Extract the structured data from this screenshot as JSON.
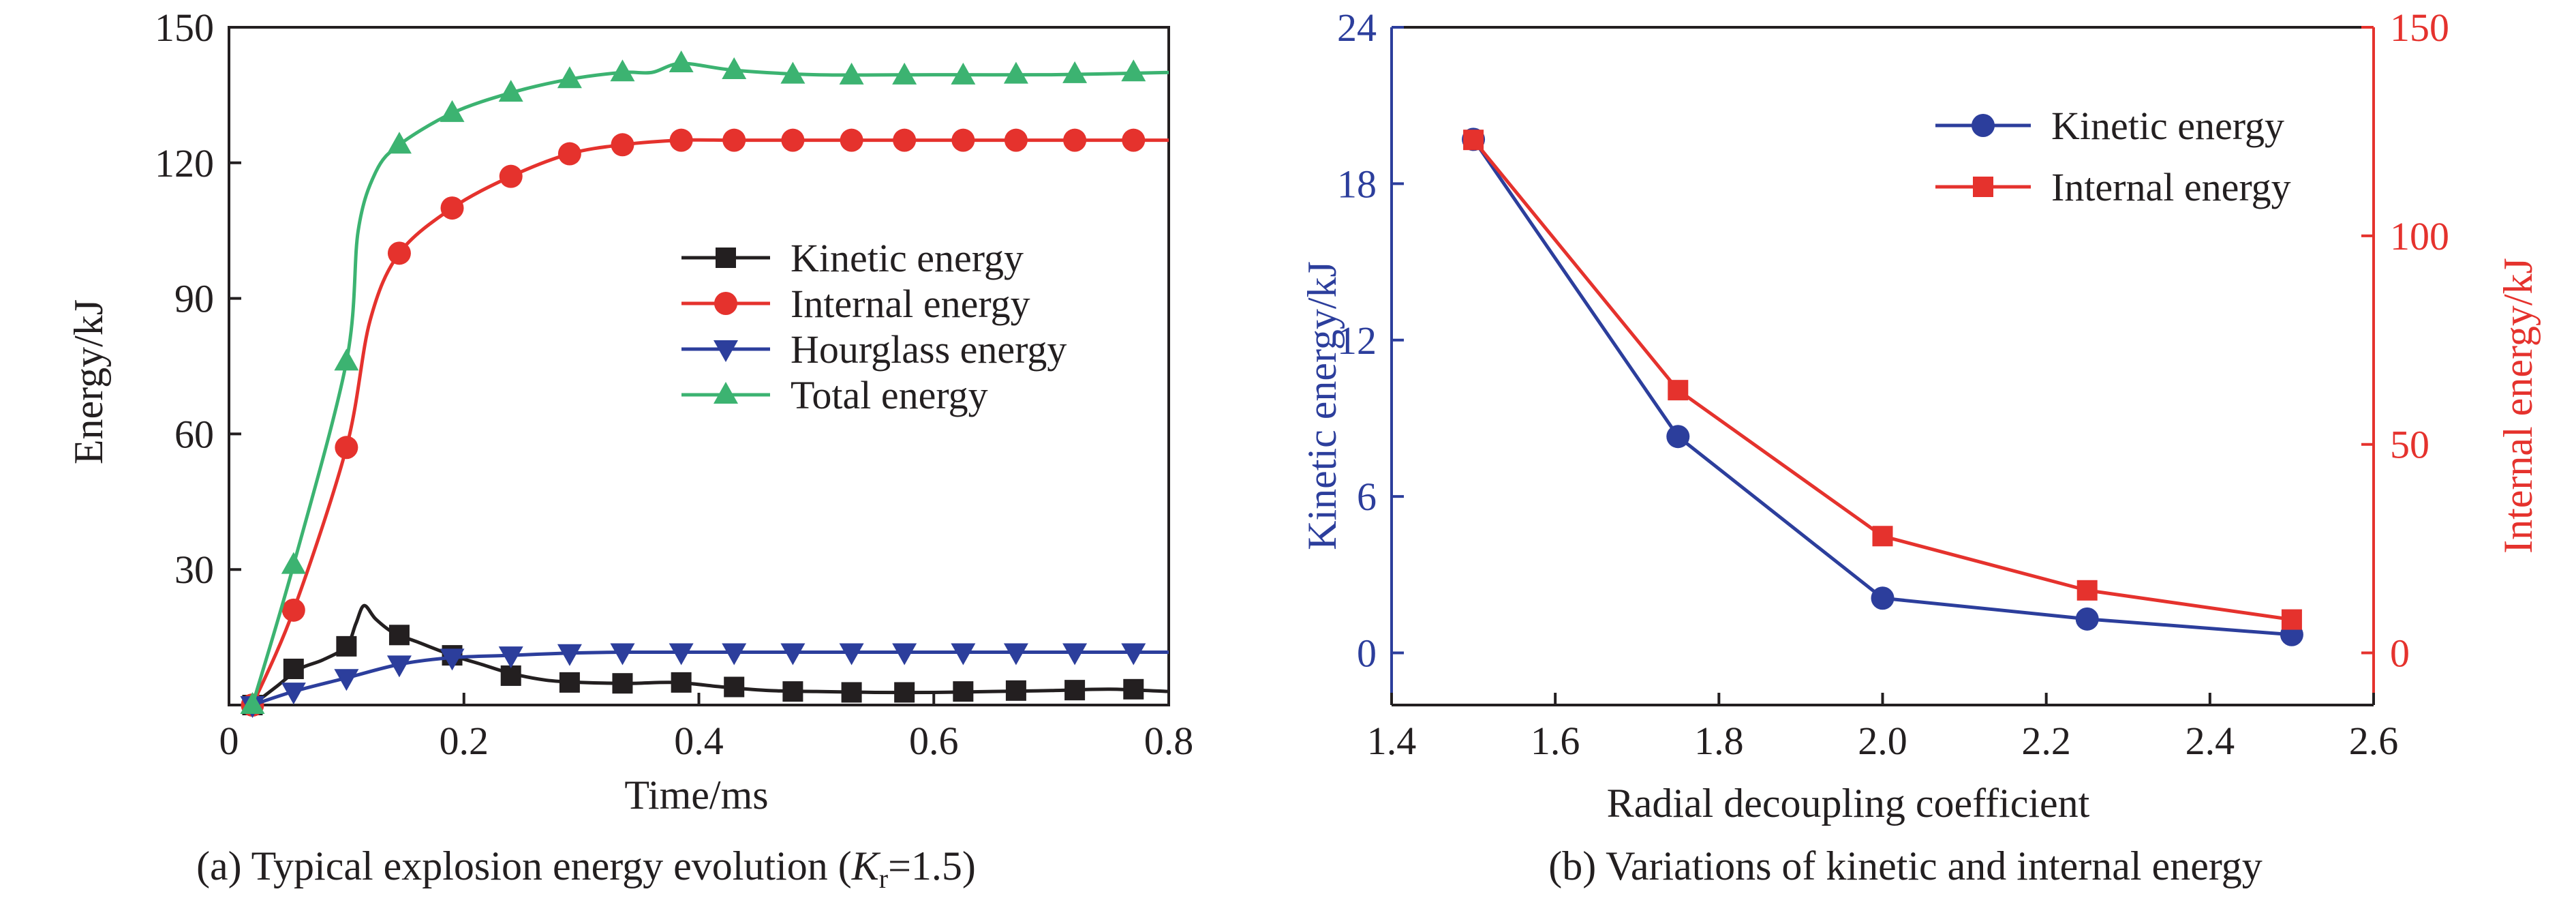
{
  "colors": {
    "black": "#231f20",
    "red": "#e5322d",
    "blue": "#2c3e9c",
    "green": "#3cb371",
    "kinetic_axis": "#2c3e9c",
    "internal_axis": "#e5322d"
  },
  "chart_data": [
    {
      "type": "line",
      "caption": {
        "prefix": "(a) Typical explosion energy evolution (",
        "var_main": "K",
        "var_sub": "r",
        "suffix": "=1.5)"
      },
      "xlabel": "Time/ms",
      "ylabel": "Energy/kJ",
      "xlim": [
        0,
        0.8
      ],
      "ylim": [
        0,
        150
      ],
      "x_ticks": [
        "0",
        "0.2",
        "0.4",
        "0.6",
        "0.8"
      ],
      "y_ticks": [
        "30",
        "60",
        "90",
        "120",
        "150"
      ],
      "x_tick_values": [
        0,
        0.2,
        0.4,
        0.6,
        0.8
      ],
      "y_tick_values": [
        30,
        60,
        90,
        120,
        150
      ],
      "legend_position": "center-right",
      "series": [
        {
          "name": "Kinetic energy",
          "color": "#231f20",
          "marker": "square",
          "curve_x": [
            0.02,
            0.04,
            0.06,
            0.08,
            0.1,
            0.108,
            0.115,
            0.125,
            0.14,
            0.16,
            0.19,
            0.215,
            0.24,
            0.27,
            0.3,
            0.34,
            0.38,
            0.42,
            0.46,
            0.5,
            0.55,
            0.6,
            0.65,
            0.7,
            0.75,
            0.8
          ],
          "curve_y": [
            0,
            4,
            8,
            10,
            13,
            18,
            22,
            19,
            16,
            14,
            11,
            9,
            7,
            5.5,
            5,
            4.8,
            5,
            4,
            3.2,
            3,
            2.8,
            2.8,
            3,
            3.2,
            3.5,
            3
          ],
          "marker_x": [
            0.02,
            0.055,
            0.1,
            0.145,
            0.19,
            0.24,
            0.29,
            0.335,
            0.385,
            0.43,
            0.48,
            0.53,
            0.575,
            0.625,
            0.67,
            0.72,
            0.77
          ],
          "marker_y": [
            0,
            8,
            13,
            15.5,
            11,
            6.5,
            5,
            4.8,
            5,
            4,
            3,
            2.8,
            2.8,
            3,
            3.2,
            3.3,
            3.5
          ]
        },
        {
          "name": "Internal energy",
          "color": "#e5322d",
          "marker": "circle",
          "curve_x": [
            0.02,
            0.055,
            0.1,
            0.12,
            0.145,
            0.19,
            0.24,
            0.29,
            0.335,
            0.385,
            0.43,
            0.5,
            0.6,
            0.7,
            0.8
          ],
          "curve_y": [
            0,
            21,
            57,
            85,
            100,
            110,
            117,
            122,
            124,
            125,
            125,
            125,
            125,
            125,
            125
          ],
          "marker_x": [
            0.02,
            0.055,
            0.1,
            0.145,
            0.19,
            0.24,
            0.29,
            0.335,
            0.385,
            0.43,
            0.48,
            0.53,
            0.575,
            0.625,
            0.67,
            0.72,
            0.77
          ],
          "marker_y": [
            0,
            21,
            57,
            100,
            110,
            117,
            122,
            124,
            125,
            125,
            125,
            125,
            125,
            125,
            125,
            125,
            125
          ]
        },
        {
          "name": "Hourglass energy",
          "color": "#2c3e9c",
          "marker": "triangle-down",
          "curve_x": [
            0.02,
            0.055,
            0.1,
            0.145,
            0.19,
            0.24,
            0.29,
            0.335,
            0.4,
            0.5,
            0.6,
            0.7,
            0.8
          ],
          "curve_y": [
            0,
            3,
            6,
            9,
            10.5,
            11,
            11.5,
            11.7,
            11.7,
            11.7,
            11.7,
            11.7,
            11.7
          ],
          "marker_x": [
            0.02,
            0.055,
            0.1,
            0.145,
            0.19,
            0.24,
            0.29,
            0.335,
            0.385,
            0.43,
            0.48,
            0.53,
            0.575,
            0.625,
            0.67,
            0.72,
            0.77
          ],
          "marker_y": [
            0,
            3,
            6,
            9,
            10.5,
            11,
            11.5,
            11.7,
            11.7,
            11.7,
            11.7,
            11.7,
            11.7,
            11.7,
            11.7,
            11.7,
            11.7
          ]
        },
        {
          "name": "Total energy",
          "color": "#3cb371",
          "marker": "triangle-up",
          "curve_x": [
            0.02,
            0.055,
            0.1,
            0.11,
            0.125,
            0.145,
            0.19,
            0.24,
            0.29,
            0.335,
            0.36,
            0.385,
            0.43,
            0.5,
            0.6,
            0.7,
            0.8
          ],
          "curve_y": [
            0,
            31,
            76,
            105,
            118,
            124,
            131,
            135.5,
            138.5,
            140,
            140,
            142,
            140.5,
            139.5,
            139.5,
            139.5,
            140
          ],
          "marker_x": [
            0.02,
            0.055,
            0.1,
            0.145,
            0.19,
            0.24,
            0.29,
            0.335,
            0.385,
            0.43,
            0.48,
            0.53,
            0.575,
            0.625,
            0.67,
            0.72,
            0.77
          ],
          "marker_y": [
            0,
            31,
            76,
            124,
            131,
            135.5,
            138.5,
            140,
            142,
            140.5,
            139.5,
            139.3,
            139.3,
            139.3,
            139.5,
            139.6,
            140
          ]
        }
      ]
    },
    {
      "type": "line",
      "caption": "(b) Variations of kinetic and internal energy",
      "xlabel": "Radial decoupling coefficient",
      "ylabel_left": "Kinetic energy/kJ",
      "ylabel_right": "Internal energy/kJ",
      "xlim": [
        1.4,
        2.6
      ],
      "ylim_left": [
        -2,
        24
      ],
      "ylim_right": [
        -12.5,
        150
      ],
      "x_ticks": [
        "1.4",
        "1.6",
        "1.8",
        "2.0",
        "2.2",
        "2.4",
        "2.6"
      ],
      "x_tick_values": [
        1.4,
        1.6,
        1.8,
        2.0,
        2.2,
        2.4,
        2.6
      ],
      "y_left_ticks": [
        "0",
        "6",
        "12",
        "18",
        "24"
      ],
      "y_left_tick_values": [
        0,
        6,
        12,
        18,
        24
      ],
      "y_right_ticks": [
        "0",
        "50",
        "100",
        "150"
      ],
      "y_right_tick_values": [
        0,
        50,
        100,
        150
      ],
      "legend_position": "top-right",
      "series": [
        {
          "name": "Kinetic energy",
          "axis": "left",
          "color": "#2c3e9c",
          "marker": "circle",
          "x": [
            1.5,
            1.75,
            2.0,
            2.25,
            2.5
          ],
          "y": [
            19.7,
            8.3,
            2.1,
            1.3,
            0.7
          ]
        },
        {
          "name": "Internal energy",
          "axis": "right",
          "color": "#e5322d",
          "marker": "square",
          "x": [
            1.5,
            1.75,
            2.0,
            2.25,
            2.5
          ],
          "y": [
            123,
            63,
            28,
            15,
            8
          ]
        }
      ]
    }
  ]
}
